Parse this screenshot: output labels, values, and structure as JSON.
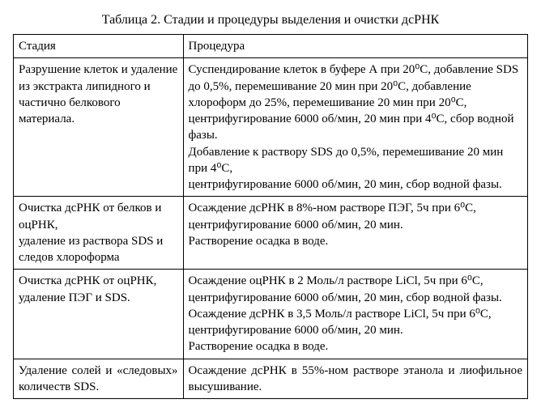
{
  "title": "Таблица 2. Стадии и процедуры выделения и очистки дсРНК",
  "headers": {
    "stage": "Стадия",
    "procedure": "Процедура"
  },
  "rows": [
    {
      "stage": "Разрушение клеток и удаление из экстракта липидного и частично белкового материала.",
      "procedure": "Суспендирование клеток в буфере А при 20⁰С, добавление SDS до 0,5%, перемешивание 20 мин при 20⁰С, добавление хлороформ до 25%, перемешивание 20 мин при 20⁰С, центрифугирование 6000 об/мин, 20 мин при 4⁰С, сбор водной фазы.\nДобавление к раствору SDS до 0,5%, перемешивание 20 мин при 4⁰С,\nцентрифугирование 6000 об/мин, 20 мин, сбор водной фазы."
    },
    {
      "stage": "Очистка дсРНК от белков и оцРНК,\nудаление из раствора SDS и следов хлороформа",
      "procedure": "Осаждение дсРНК в 8%-ном растворе ПЭГ, 5ч при 6⁰С, центрифугирование 6000 об/мин, 20 мин.\nРастворение осадка в воде."
    },
    {
      "stage": "Очистка дсРНК от оцРНК, удаление ПЭГ и SDS.",
      "procedure": "Осаждение оцРНК в 2 Моль/л растворе LiCl, 5ч при 6⁰С, центрифугирование 6000 об/мин, 20 мин, сбор водной фазы.\nОсаждение дсРНК в 3,5 Моль/л растворе LiCl, 5ч при 6⁰С, центрифугирование 6000 об/мин, 20 мин.\nРастворение осадка в воде."
    },
    {
      "stage_justified": true,
      "stage": "Удаление солей и «следовых» количеств SDS.",
      "procedure_justified": true,
      "procedure": "Осаждение дсРНК в 55%-ном растворе этанола и лиофильное высушивание."
    }
  ]
}
